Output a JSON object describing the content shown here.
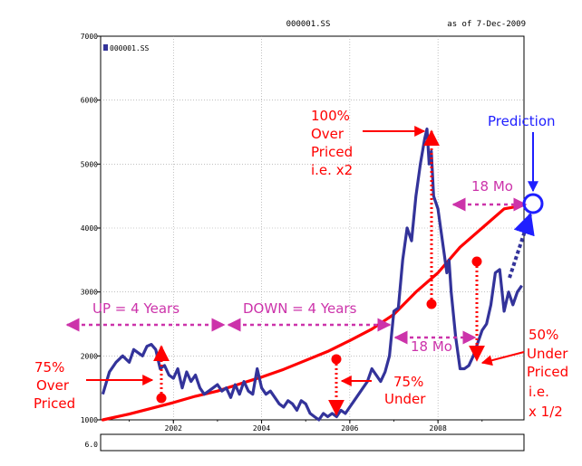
{
  "header": {
    "symbol": "000001.SS",
    "as_of": "as of  7-Dec-2009"
  },
  "legend": {
    "label": "000001.SS"
  },
  "bottom_note": "6.0",
  "colors": {
    "price": "#33339a",
    "trend": "#ff0000",
    "annotation_red": "#ff0000",
    "bracket": "#cc33aa",
    "prediction": "#1f1fff"
  },
  "annotations": {
    "up": "UP = 4 Years",
    "down": "DOWN = 4 Years",
    "over75": [
      "75%",
      "Over",
      "Priced"
    ],
    "under75": [
      "75%",
      "Under"
    ],
    "over100": [
      "100%",
      "Over",
      "Priced",
      "i.e. x2"
    ],
    "mo18_top": "18 Mo",
    "mo18_mid": "18 Mo",
    "under50": [
      "50%",
      "Under",
      "Priced",
      "i.e.",
      "x 1/2"
    ],
    "prediction": "Prediction"
  },
  "chart_data": {
    "type": "line",
    "title": "000001.SS",
    "xlabel": "",
    "ylabel": "",
    "xlim": [
      2000.35,
      2009.95
    ],
    "ylim": [
      1000,
      7000
    ],
    "y_ticks": [
      1000,
      2000,
      3000,
      4000,
      5000,
      6000,
      7000
    ],
    "x_ticks": [
      2002,
      2004,
      2006,
      2008
    ],
    "grid": true,
    "legend_position": "top-left",
    "series": [
      {
        "name": "000001.SS",
        "x": [
          2000.4,
          2000.55,
          2000.7,
          2000.85,
          2001.0,
          2001.1,
          2001.2,
          2001.3,
          2001.4,
          2001.5,
          2001.6,
          2001.7,
          2001.8,
          2001.9,
          2002.0,
          2002.1,
          2002.2,
          2002.3,
          2002.4,
          2002.5,
          2002.6,
          2002.7,
          2002.8,
          2002.9,
          2003.0,
          2003.1,
          2003.2,
          2003.3,
          2003.4,
          2003.5,
          2003.6,
          2003.7,
          2003.8,
          2003.9,
          2004.0,
          2004.1,
          2004.2,
          2004.3,
          2004.4,
          2004.5,
          2004.6,
          2004.7,
          2004.8,
          2004.9,
          2005.0,
          2005.1,
          2005.2,
          2005.3,
          2005.4,
          2005.5,
          2005.6,
          2005.7,
          2005.8,
          2005.9,
          2006.0,
          2006.1,
          2006.2,
          2006.3,
          2006.4,
          2006.5,
          2006.6,
          2006.7,
          2006.8,
          2006.9,
          2007.0,
          2007.1,
          2007.2,
          2007.3,
          2007.4,
          2007.5,
          2007.6,
          2007.7,
          2007.75,
          2007.8,
          2007.85,
          2007.9,
          2008.0,
          2008.1,
          2008.2,
          2008.25,
          2008.3,
          2008.4,
          2008.5,
          2008.6,
          2008.7,
          2008.8,
          2008.9,
          2009.0,
          2009.1,
          2009.2,
          2009.3,
          2009.4,
          2009.5,
          2009.6,
          2009.7,
          2009.8,
          2009.9
        ],
        "values": [
          1400,
          1750,
          1900,
          2000,
          1900,
          2100,
          2050,
          2000,
          2150,
          2180,
          2100,
          1800,
          1850,
          1700,
          1650,
          1800,
          1500,
          1750,
          1600,
          1700,
          1500,
          1400,
          1450,
          1500,
          1550,
          1450,
          1500,
          1350,
          1550,
          1400,
          1600,
          1450,
          1400,
          1800,
          1500,
          1400,
          1450,
          1350,
          1250,
          1200,
          1300,
          1250,
          1150,
          1300,
          1250,
          1100,
          1050,
          1000,
          1100,
          1050,
          1100,
          1050,
          1150,
          1100,
          1200,
          1300,
          1400,
          1500,
          1600,
          1800,
          1700,
          1600,
          1750,
          2000,
          2700,
          2750,
          3500,
          4000,
          3800,
          4500,
          5000,
          5400,
          5550,
          5000,
          5200,
          4500,
          4300,
          3800,
          3300,
          3500,
          3000,
          2300,
          1800,
          1800,
          1850,
          2000,
          2200,
          2400,
          2500,
          2800,
          3300,
          3350,
          2700,
          3000,
          2800,
          3000,
          3100
        ]
      },
      {
        "name": "",
        "x": [
          2000.4,
          2001.0,
          2001.5,
          2002.0,
          2002.5,
          2003.0,
          2003.5,
          2004.0,
          2004.5,
          2005.0,
          2005.5,
          2006.0,
          2006.5,
          2007.0,
          2007.5,
          2008.0,
          2008.5,
          2009.0,
          2009.5,
          2009.9
        ],
        "values": [
          1000,
          1090,
          1180,
          1270,
          1370,
          1450,
          1560,
          1670,
          1790,
          1930,
          2070,
          2240,
          2420,
          2650,
          3000,
          3300,
          3700,
          4000,
          4300,
          4350
        ]
      }
    ]
  }
}
